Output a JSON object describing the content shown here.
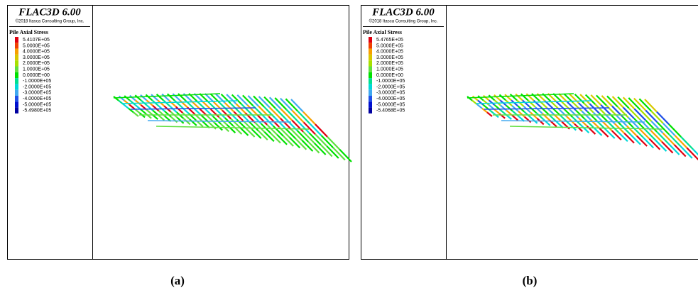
{
  "panels": [
    {
      "caption": "(a)",
      "software": "FLAC3D 6.00",
      "copyright": "©2018 Itasca Consulting Group, Inc.",
      "legend": {
        "title": "Pile Axial Stress",
        "items": [
          {
            "label": "5.4107E+05",
            "color": "#e00010"
          },
          {
            "label": "5.0000E+05",
            "color": "#f04000"
          },
          {
            "label": "4.0000E+05",
            "color": "#f8a000"
          },
          {
            "label": "3.0000E+05",
            "color": "#d8c800"
          },
          {
            "label": "2.0000E+05",
            "color": "#a8e000"
          },
          {
            "label": "1.0000E+05",
            "color": "#60e040"
          },
          {
            "label": "0.0000E+00",
            "color": "#00e000"
          },
          {
            "label": "-1.0000E+05",
            "color": "#00e090"
          },
          {
            "label": "-2.0000E+05",
            "color": "#00d8d8"
          },
          {
            "label": "-3.0000E+05",
            "color": "#40a8f0"
          },
          {
            "label": "-4.0000E+05",
            "color": "#2050e8"
          },
          {
            "label": "-5.0000E+05",
            "color": "#0010d0"
          },
          {
            "label": "-5.4980E+05",
            "color": "#0000a0"
          }
        ]
      }
    },
    {
      "caption": "(b)",
      "software": "FLAC3D 6.00",
      "copyright": "©2018 Itasca Consulting Group, Inc.",
      "legend": {
        "title": "Pile Axial Stress",
        "items": [
          {
            "label": "5.4765E+05",
            "color": "#e00010"
          },
          {
            "label": "5.0000E+05",
            "color": "#f04000"
          },
          {
            "label": "4.0000E+05",
            "color": "#f8a000"
          },
          {
            "label": "3.0000E+05",
            "color": "#d8c800"
          },
          {
            "label": "2.0000E+05",
            "color": "#a8e000"
          },
          {
            "label": "1.0000E+05",
            "color": "#60e040"
          },
          {
            "label": "0.0000E+00",
            "color": "#00e000"
          },
          {
            "label": "-1.0000E+05",
            "color": "#00e090"
          },
          {
            "label": "-2.0000E+05",
            "color": "#00d8d8"
          },
          {
            "label": "-3.0000E+05",
            "color": "#40a8f0"
          },
          {
            "label": "-4.0000E+05",
            "color": "#2050e8"
          },
          {
            "label": "-5.0000E+05",
            "color": "#0010d0"
          },
          {
            "label": "-5.4068E+05",
            "color": "#0000a0"
          }
        ]
      }
    }
  ]
}
